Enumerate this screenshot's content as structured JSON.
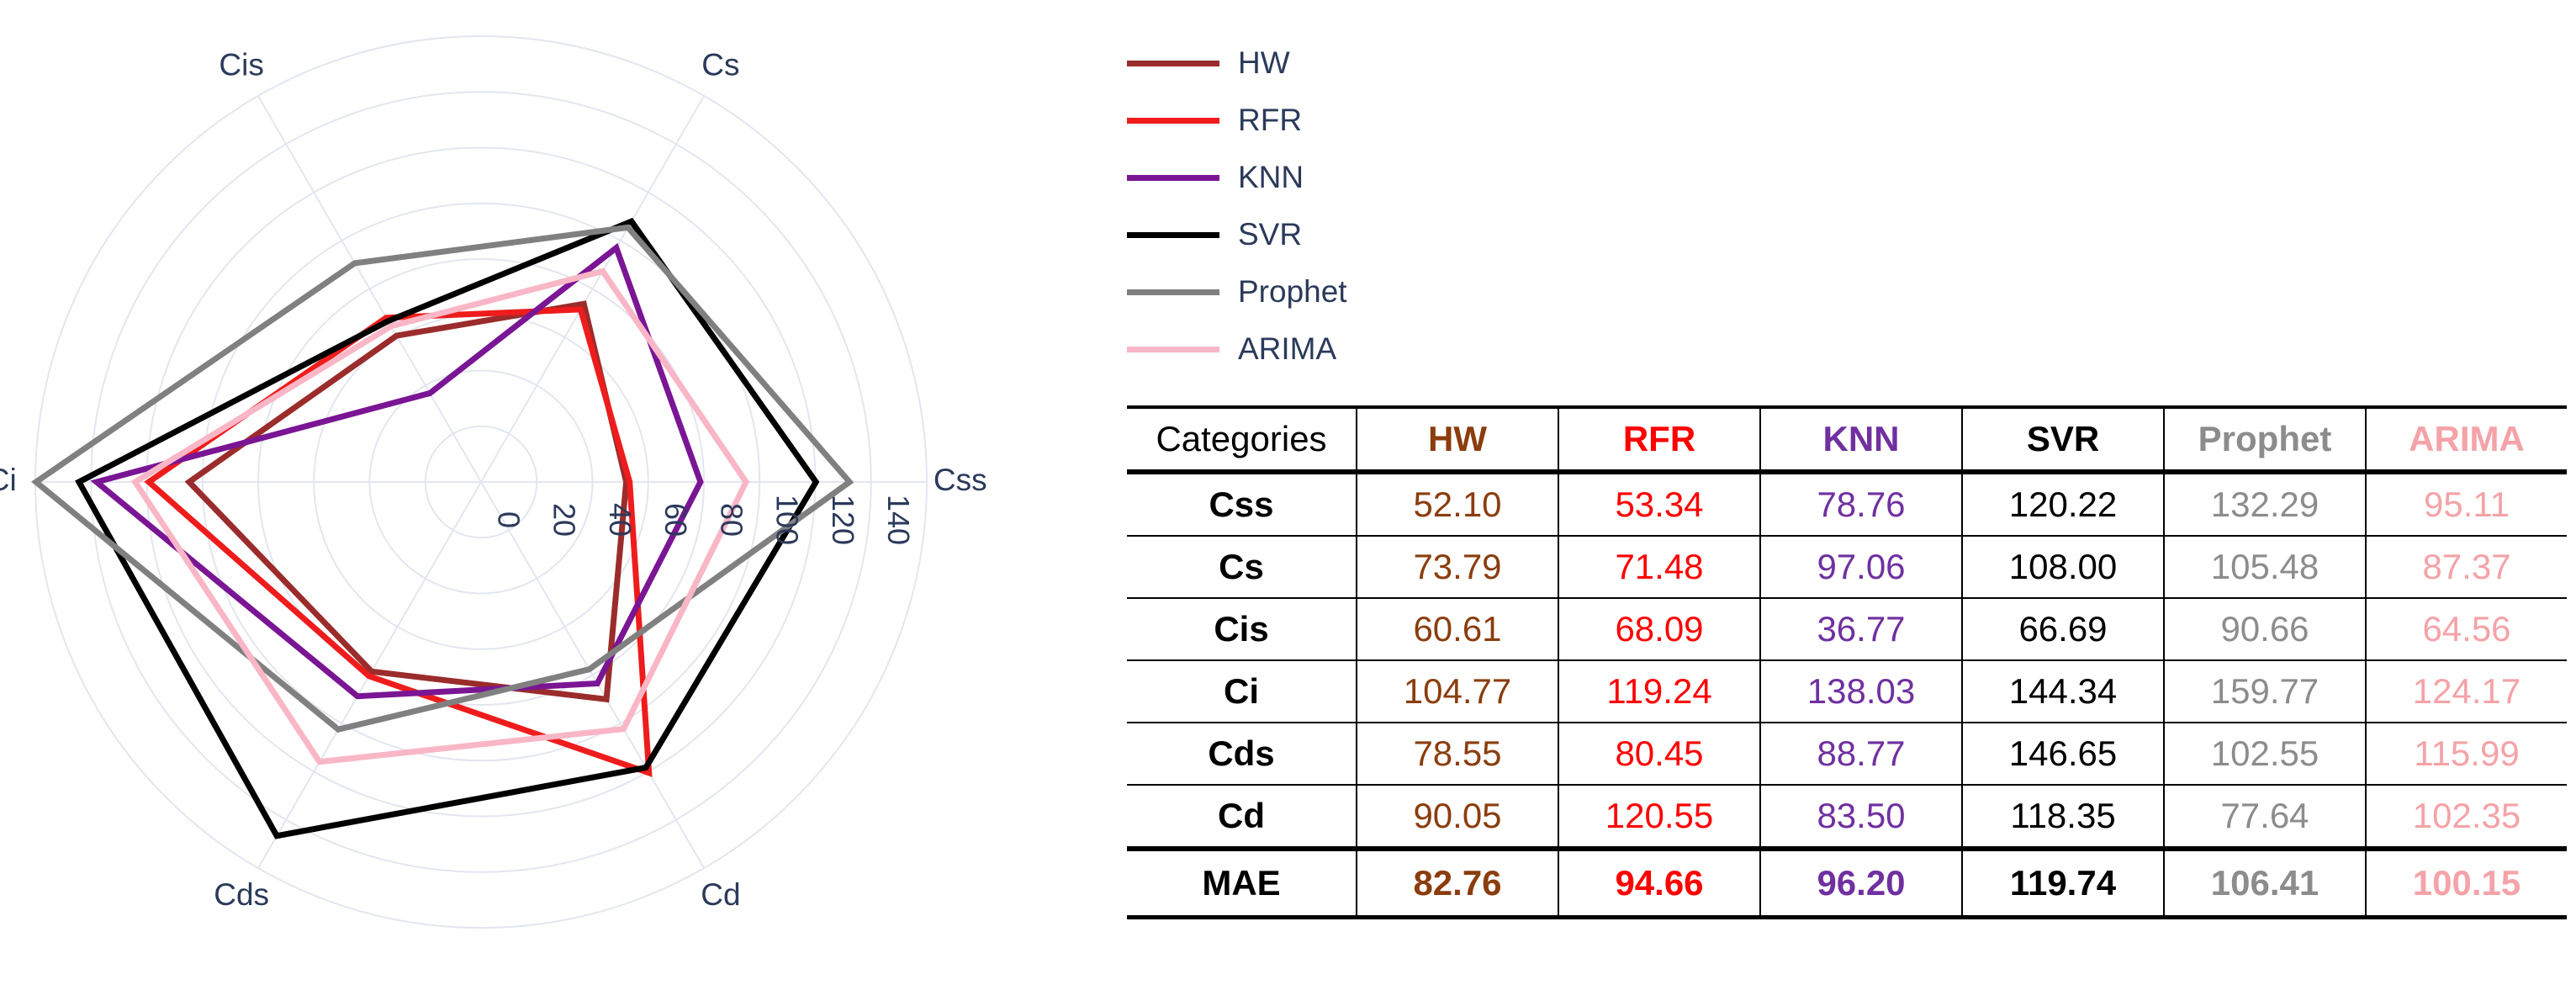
{
  "chart_data": {
    "type": "radar",
    "axes": [
      "Css",
      "Cs",
      "Cis",
      "Ci",
      "Cds",
      "Cd"
    ],
    "radial_ticks": [
      "0",
      "20",
      "40",
      "60",
      "80",
      "100",
      "120",
      "140"
    ],
    "radial_range": [
      0,
      160
    ],
    "series": [
      {
        "name": "HW",
        "color": "#9b2c2c",
        "values": [
          52.1,
          73.79,
          60.61,
          104.77,
          78.55,
          90.05
        ]
      },
      {
        "name": "RFR",
        "color": "#ee1c1c",
        "values": [
          53.34,
          71.48,
          68.09,
          119.24,
          80.45,
          120.55
        ]
      },
      {
        "name": "KNN",
        "color": "#7a1594",
        "values": [
          78.76,
          97.06,
          36.77,
          138.03,
          88.77,
          83.5
        ]
      },
      {
        "name": "SVR",
        "color": "#000000",
        "values": [
          120.22,
          108.0,
          66.69,
          144.34,
          146.65,
          118.35
        ]
      },
      {
        "name": "Prophet",
        "color": "#808080",
        "values": [
          132.29,
          105.48,
          90.66,
          159.77,
          102.55,
          77.64
        ]
      },
      {
        "name": "ARIMA",
        "color": "#f9b6c6",
        "values": [
          95.11,
          87.37,
          64.56,
          124.17,
          115.99,
          102.35
        ]
      }
    ]
  },
  "table": {
    "header": "Categories",
    "columns": [
      {
        "name": "HW",
        "color": "#8b3d0e"
      },
      {
        "name": "RFR",
        "color": "#ff0000"
      },
      {
        "name": "KNN",
        "color": "#7030a0"
      },
      {
        "name": "SVR",
        "color": "#000000"
      },
      {
        "name": "Prophet",
        "color": "#8c8c8c"
      },
      {
        "name": "ARIMA",
        "color": "#f4a3a8"
      }
    ],
    "rows": [
      {
        "label": "Css",
        "values": [
          "52.10",
          "53.34",
          "78.76",
          "120.22",
          "132.29",
          "95.11"
        ]
      },
      {
        "label": "Cs",
        "values": [
          "73.79",
          "71.48",
          "97.06",
          "108.00",
          "105.48",
          "87.37"
        ]
      },
      {
        "label": "Cis",
        "values": [
          "60.61",
          "68.09",
          "36.77",
          "66.69",
          "90.66",
          "64.56"
        ]
      },
      {
        "label": "Ci",
        "values": [
          "104.77",
          "119.24",
          "138.03",
          "144.34",
          "159.77",
          "124.17"
        ]
      },
      {
        "label": "Cds",
        "values": [
          "78.55",
          "80.45",
          "88.77",
          "146.65",
          "102.55",
          "115.99"
        ]
      },
      {
        "label": "Cd",
        "values": [
          "90.05",
          "120.55",
          "83.50",
          "118.35",
          "77.64",
          "102.35"
        ]
      }
    ],
    "summary": {
      "label": "MAE",
      "values": [
        "82.76",
        "94.66",
        "96.20",
        "119.74",
        "106.41",
        "100.15"
      ]
    }
  }
}
